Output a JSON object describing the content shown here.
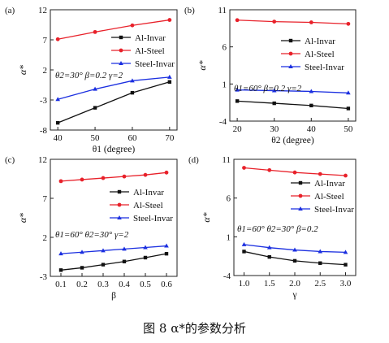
{
  "figure_caption": "图 8 α*的参数分析",
  "colors": {
    "al_invar": "#111111",
    "al_steel": "#e8212a",
    "steel_invar": "#1b2fe0",
    "axes": "#222222"
  },
  "chart_data": [
    {
      "type": "line",
      "panel_label": "(a)",
      "xlabel": "θ1 (degree)",
      "ylabel": "α*",
      "x": [
        40,
        50,
        60,
        70
      ],
      "xticks": [
        "40",
        "50",
        "60",
        "70"
      ],
      "xlim": [
        38,
        72
      ],
      "ylim": [
        -8,
        12
      ],
      "yticks": [
        "-8",
        "-3",
        "2",
        "7",
        "12"
      ],
      "yticks_values": [
        -8,
        -3,
        2,
        7,
        12
      ],
      "legend_position": "top-right",
      "annotation": "θ2=30°  β=0.2  γ=2",
      "series": [
        {
          "name": "Al-Invar",
          "marker": "square",
          "values": [
            -6.8,
            -4.3,
            -1.8,
            0.0
          ]
        },
        {
          "name": "Al-Steel",
          "marker": "circle",
          "values": [
            7.1,
            8.3,
            9.4,
            10.3
          ]
        },
        {
          "name": "Steel-Invar",
          "marker": "triangle",
          "values": [
            -2.9,
            -1.2,
            0.2,
            0.8
          ]
        }
      ]
    },
    {
      "type": "line",
      "panel_label": "(b)",
      "xlabel": "θ2 (degree)",
      "ylabel": "α*",
      "x": [
        20,
        30,
        40,
        50
      ],
      "xticks": [
        "20",
        "30",
        "40",
        "50"
      ],
      "xlim": [
        18,
        52
      ],
      "ylim": [
        -4,
        11
      ],
      "yticks": [
        "-4",
        "1",
        "6",
        "11"
      ],
      "yticks_values": [
        -4,
        1,
        6,
        11
      ],
      "legend_position": "top-right",
      "annotation": "θ1=60°  β=0.2  γ=2",
      "series": [
        {
          "name": "Al-Invar",
          "marker": "square",
          "values": [
            -1.3,
            -1.6,
            -1.9,
            -2.3
          ]
        },
        {
          "name": "Al-Steel",
          "marker": "circle",
          "values": [
            9.6,
            9.4,
            9.3,
            9.1
          ]
        },
        {
          "name": "Steel-Invar",
          "marker": "triangle",
          "values": [
            0.2,
            0.1,
            0.0,
            -0.2
          ]
        }
      ]
    },
    {
      "type": "line",
      "panel_label": "(c)",
      "xlabel": "β",
      "ylabel": "α*",
      "x": [
        0.1,
        0.2,
        0.3,
        0.4,
        0.5,
        0.6
      ],
      "xticks": [
        "0.1",
        "0.2",
        "0.3",
        "0.4",
        "0.5",
        "0.6"
      ],
      "xlim": [
        0.05,
        0.65
      ],
      "ylim": [
        -3,
        12
      ],
      "yticks": [
        "-3",
        "2",
        "7",
        "12"
      ],
      "yticks_values": [
        -3,
        2,
        7,
        12
      ],
      "legend_position": "right",
      "annotation": "θ1=60°  θ2=30°  γ=2",
      "series": [
        {
          "name": "Al-Invar",
          "marker": "square",
          "values": [
            -2.2,
            -1.9,
            -1.5,
            -1.1,
            -0.6,
            -0.1
          ]
        },
        {
          "name": "Al-Steel",
          "marker": "circle",
          "values": [
            9.2,
            9.4,
            9.6,
            9.8,
            10.0,
            10.3
          ]
        },
        {
          "name": "Steel-Invar",
          "marker": "triangle",
          "values": [
            -0.1,
            0.1,
            0.3,
            0.5,
            0.7,
            0.9
          ]
        }
      ]
    },
    {
      "type": "line",
      "panel_label": "(d)",
      "xlabel": "γ",
      "ylabel": "α*",
      "x": [
        1.0,
        1.5,
        2.0,
        2.5,
        3.0
      ],
      "xticks": [
        "1.0",
        "1.5",
        "2.0",
        "2.5",
        "3.0"
      ],
      "xlim": [
        0.8,
        3.2
      ],
      "ylim": [
        -4,
        11
      ],
      "yticks": [
        "-4",
        "1",
        "6",
        "11"
      ],
      "yticks_values": [
        -4,
        1,
        6,
        11
      ],
      "legend_position": "right",
      "annotation": "θ1=60°  θ2=30°  β=0.2",
      "series": [
        {
          "name": "Al-Invar",
          "marker": "square",
          "values": [
            -0.9,
            -1.6,
            -2.1,
            -2.4,
            -2.6
          ]
        },
        {
          "name": "Al-Steel",
          "marker": "circle",
          "values": [
            9.9,
            9.6,
            9.3,
            9.1,
            8.9
          ]
        },
        {
          "name": "Steel-Invar",
          "marker": "triangle",
          "values": [
            0.0,
            -0.4,
            -0.7,
            -0.9,
            -1.0
          ]
        }
      ]
    }
  ]
}
